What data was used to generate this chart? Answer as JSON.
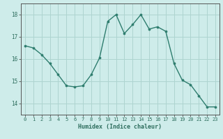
{
  "x": [
    0,
    1,
    2,
    3,
    4,
    5,
    6,
    7,
    8,
    9,
    10,
    11,
    12,
    13,
    14,
    15,
    16,
    17,
    18,
    19,
    20,
    21,
    22,
    23
  ],
  "y": [
    16.6,
    16.5,
    16.2,
    15.8,
    15.3,
    14.8,
    14.75,
    14.8,
    15.3,
    16.05,
    17.7,
    18.0,
    17.15,
    17.55,
    18.0,
    17.35,
    17.45,
    17.25,
    15.8,
    15.05,
    14.85,
    14.35,
    13.85,
    13.85
  ],
  "xlabel": "Humidex (Indice chaleur)",
  "ylim": [
    13.5,
    18.5
  ],
  "xlim": [
    -0.5,
    23.5
  ],
  "yticks": [
    14,
    15,
    16,
    17,
    18
  ],
  "xticks": [
    0,
    1,
    2,
    3,
    4,
    5,
    6,
    7,
    8,
    9,
    10,
    11,
    12,
    13,
    14,
    15,
    16,
    17,
    18,
    19,
    20,
    21,
    22,
    23
  ],
  "line_color": "#2e7d6e",
  "marker_color": "#2e7d6e",
  "bg_color": "#ceecea",
  "grid_color": "#aed4d0",
  "axis_color": "#555555",
  "label_color": "#2e6e5e",
  "tick_color": "#2e6e5e",
  "font_family": "monospace"
}
